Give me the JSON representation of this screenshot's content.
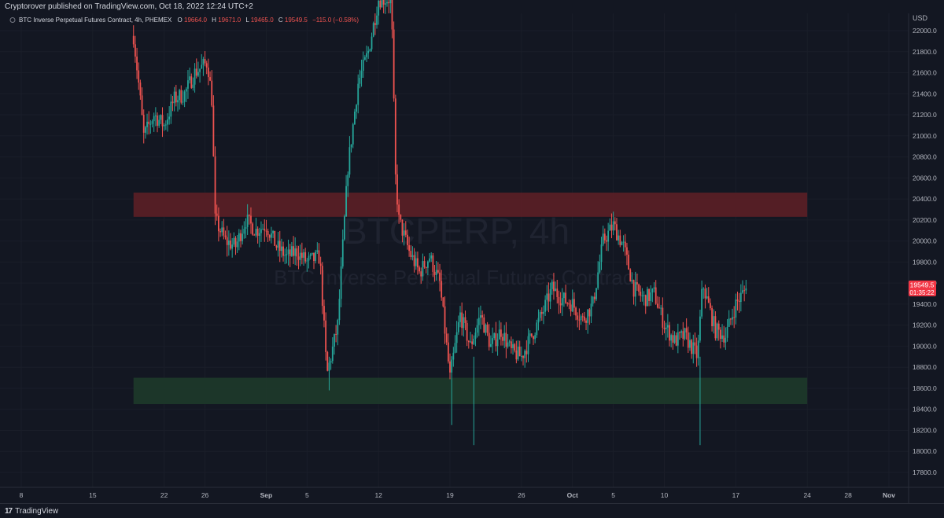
{
  "header": {
    "published": "Cryptorover published on TradingView.com, Oct 18, 2022 12:24 UTC+2"
  },
  "legend": {
    "symbol": "BTC Inverse Perpetual Futures Contract, 4h, PHEMEX",
    "open_label": "O",
    "open": "19664.0",
    "high_label": "H",
    "high": "19671.0",
    "low_label": "L",
    "low": "19465.0",
    "close_label": "C",
    "close": "19549.5",
    "change": "−115.0 (−0.58%)"
  },
  "watermark": {
    "line1": "BTCPERP, 4h",
    "line2": "BTC Inverse Perpetual Futures Contract"
  },
  "price_tag": {
    "price": "19549.5",
    "countdown": "01:35:22"
  },
  "footer": {
    "logo_mark": "17",
    "logo_text": "TradingView"
  },
  "colors": {
    "background": "#131722",
    "up": "#26a69a",
    "down": "#ef5350",
    "resistance_zone": "#5c1f26",
    "support_zone": "#1e3a2a",
    "axis_text": "#b2b5be",
    "price_tag": "#f23645"
  },
  "chart_data": {
    "type": "candlestick",
    "currency": "USD",
    "ylim": [
      17600,
      22150
    ],
    "y_ticks": [
      17800,
      18000,
      18200,
      18400,
      18600,
      18800,
      19000,
      19200,
      19400,
      19600,
      19800,
      20000,
      20200,
      20400,
      20600,
      20800,
      21000,
      21200,
      21400,
      21600,
      21800,
      22000
    ],
    "y_tick_labels": [
      "17800.0",
      "18000.0",
      "18200.0",
      "18400.0",
      "18600.0",
      "18800.0",
      "19000.0",
      "19200.0",
      "19400.0",
      "19600.0",
      "19800.0",
      "20000.0",
      "20200.0",
      "20400.0",
      "20600.0",
      "20800.0",
      "21000.0",
      "21200.0",
      "21400.0",
      "21600.0",
      "21800.0",
      "22000.0"
    ],
    "x_domain": [
      "2022-08-06",
      "2022-11-02"
    ],
    "x_ticks": [
      {
        "date": "2022-08-08",
        "label": "8",
        "bold": false
      },
      {
        "date": "2022-08-15",
        "label": "15",
        "bold": false
      },
      {
        "date": "2022-08-22",
        "label": "22",
        "bold": false
      },
      {
        "date": "2022-08-26",
        "label": "26",
        "bold": false
      },
      {
        "date": "2022-09-01",
        "label": "Sep",
        "bold": true
      },
      {
        "date": "2022-09-05",
        "label": "5",
        "bold": false
      },
      {
        "date": "2022-09-12",
        "label": "12",
        "bold": false
      },
      {
        "date": "2022-09-19",
        "label": "19",
        "bold": false
      },
      {
        "date": "2022-09-26",
        "label": "26",
        "bold": false
      },
      {
        "date": "2022-10-01",
        "label": "Oct",
        "bold": true
      },
      {
        "date": "2022-10-05",
        "label": "5",
        "bold": false
      },
      {
        "date": "2022-10-10",
        "label": "10",
        "bold": false
      },
      {
        "date": "2022-10-17",
        "label": "17",
        "bold": false
      },
      {
        "date": "2022-10-24",
        "label": "24",
        "bold": false
      },
      {
        "date": "2022-10-28",
        "label": "28",
        "bold": false
      },
      {
        "date": "2022-11-01",
        "label": "Nov",
        "bold": true
      }
    ],
    "price_path": [
      [
        "2022-08-19",
        21950
      ],
      [
        "2022-08-19 12:00",
        21500
      ],
      [
        "2022-08-20",
        21000
      ],
      [
        "2022-08-21",
        21200
      ],
      [
        "2022-08-22",
        21100
      ],
      [
        "2022-08-23",
        21350
      ],
      [
        "2022-08-24",
        21400
      ],
      [
        "2022-08-25",
        21600
      ],
      [
        "2022-08-26 06:00",
        21700
      ],
      [
        "2022-08-26 16:00",
        21350
      ],
      [
        "2022-08-27",
        20200
      ],
      [
        "2022-08-28",
        20000
      ],
      [
        "2022-08-29",
        19950
      ],
      [
        "2022-08-30",
        20200
      ],
      [
        "2022-08-31",
        20100
      ],
      [
        "2022-09-01",
        20150
      ],
      [
        "2022-09-02",
        19950
      ],
      [
        "2022-09-03",
        19850
      ],
      [
        "2022-09-04",
        19900
      ],
      [
        "2022-09-05",
        19800
      ],
      [
        "2022-09-06 06:00",
        19850
      ],
      [
        "2022-09-06 20:00",
        18900
      ],
      [
        "2022-09-07",
        18750
      ],
      [
        "2022-09-08",
        19200
      ],
      [
        "2022-09-09",
        20700
      ],
      [
        "2022-09-10",
        21500
      ],
      [
        "2022-09-11",
        21800
      ],
      [
        "2022-09-12",
        22300
      ],
      [
        "2022-09-13 06:00",
        22300
      ],
      [
        "2022-09-13 16:00",
        20600
      ],
      [
        "2022-09-14",
        20200
      ],
      [
        "2022-09-15",
        19900
      ],
      [
        "2022-09-16",
        19700
      ],
      [
        "2022-09-17",
        19850
      ],
      [
        "2022-09-18",
        19600
      ],
      [
        "2022-09-19",
        18700
      ],
      [
        "2022-09-20",
        19300
      ],
      [
        "2022-09-21",
        19000
      ],
      [
        "2022-09-22",
        19300
      ],
      [
        "2022-09-23",
        19000
      ],
      [
        "2022-09-24",
        19150
      ],
      [
        "2022-09-25",
        18950
      ],
      [
        "2022-09-26",
        18900
      ],
      [
        "2022-09-27",
        19100
      ],
      [
        "2022-09-28",
        19300
      ],
      [
        "2022-09-29",
        19550
      ],
      [
        "2022-09-30",
        19450
      ],
      [
        "2022-10-01",
        19400
      ],
      [
        "2022-10-02",
        19250
      ],
      [
        "2022-10-03",
        19400
      ],
      [
        "2022-10-04",
        20000
      ],
      [
        "2022-10-05",
        20150
      ],
      [
        "2022-10-06",
        19950
      ],
      [
        "2022-10-07",
        19550
      ],
      [
        "2022-10-08",
        19450
      ],
      [
        "2022-10-09",
        19500
      ],
      [
        "2022-10-10",
        19200
      ],
      [
        "2022-10-11",
        19050
      ],
      [
        "2022-10-12",
        19100
      ],
      [
        "2022-10-13 06:00",
        18900
      ],
      [
        "2022-10-13 18:00",
        19600
      ],
      [
        "2022-10-14",
        19500
      ],
      [
        "2022-10-15",
        19150
      ],
      [
        "2022-10-16",
        19100
      ],
      [
        "2022-10-17",
        19400
      ],
      [
        "2022-10-18",
        19549.5
      ]
    ],
    "zones": [
      {
        "name": "resistance",
        "y_low": 20230,
        "y_high": 20460,
        "x_start": "2022-08-19",
        "x_end": "2022-10-24"
      },
      {
        "name": "support",
        "y_low": 18450,
        "y_high": 18700,
        "x_start": "2022-08-19",
        "x_end": "2022-10-24"
      }
    ],
    "last_price": 19549.5
  }
}
